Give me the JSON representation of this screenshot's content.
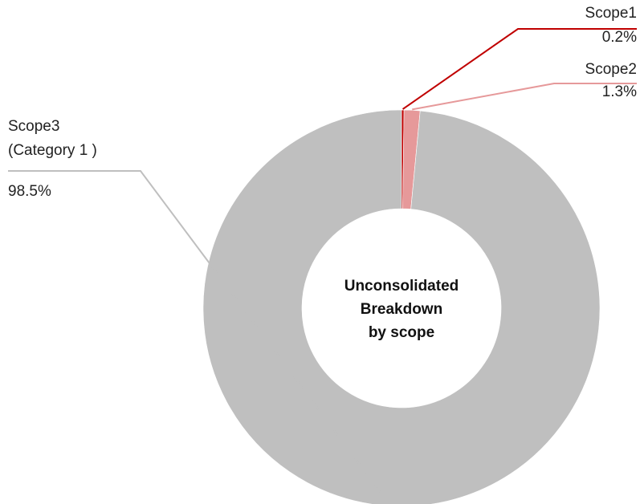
{
  "chart_data": {
    "type": "pie",
    "donut": true,
    "center_label": "Unconsolidated\nBreakdown\nby scope",
    "categories": [
      "Scope1",
      "Scope2",
      "Scope3\n(Category 1 )"
    ],
    "values": [
      0.2,
      1.3,
      98.5
    ],
    "value_labels": [
      "0.2%",
      "1.3%",
      "98.5%"
    ],
    "colors": [
      "#c00000",
      "#e6999a",
      "#bfbfbf"
    ],
    "leader_colors": [
      "#c00000",
      "#e6999a",
      "#bfbfbf"
    ]
  }
}
